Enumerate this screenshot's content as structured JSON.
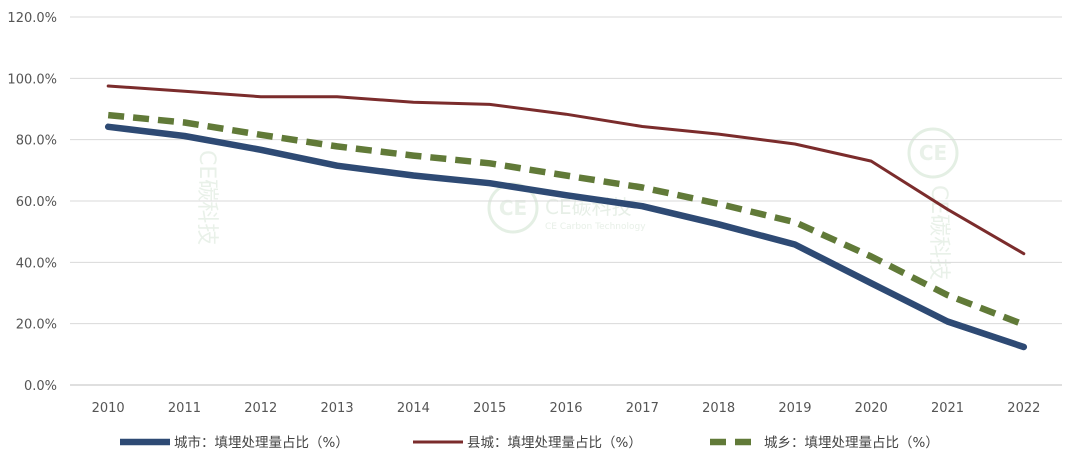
{
  "chart_data": {
    "type": "line",
    "title": "",
    "xlabel": "",
    "ylabel": "",
    "categories": [
      "2010",
      "2011",
      "2012",
      "2013",
      "2014",
      "2015",
      "2016",
      "2017",
      "2018",
      "2019",
      "2020",
      "2021",
      "2022"
    ],
    "ylim": [
      0,
      120
    ],
    "yticks": [
      0,
      20,
      40,
      60,
      80,
      100,
      120
    ],
    "ytick_labels": [
      "0.0%",
      "20.0%",
      "40.0%",
      "60.0%",
      "80.0%",
      "100.0%",
      "120.0%"
    ],
    "grid": true,
    "legend_position": "bottom",
    "series": [
      {
        "name": "城市：填埋处理量占比（%）",
        "color": "#2e4a74",
        "style": "solid-thick",
        "values": [
          84.2,
          81.2,
          76.7,
          71.5,
          68.3,
          65.8,
          61.9,
          58.3,
          52.4,
          45.8,
          33.2,
          20.7,
          12.4
        ]
      },
      {
        "name": "县城：填埋处理量占比（%）",
        "color": "#7b2c2c",
        "style": "solid-thin",
        "values": [
          97.5,
          95.8,
          94.0,
          94.0,
          92.2,
          91.5,
          88.3,
          84.3,
          81.8,
          78.6,
          73.0,
          57.3,
          42.8
        ]
      },
      {
        "name": "城乡：填埋处理量占比（%）",
        "color": "#617a38",
        "style": "dashed-thick",
        "values": [
          88.0,
          85.6,
          81.6,
          77.8,
          74.8,
          72.3,
          68.3,
          64.4,
          59.1,
          53.1,
          41.9,
          29.3,
          19.7
        ]
      }
    ]
  },
  "watermark": {
    "logo": "CE",
    "brand": "CE碳科技",
    "sub": "CE Carbon Technology"
  }
}
